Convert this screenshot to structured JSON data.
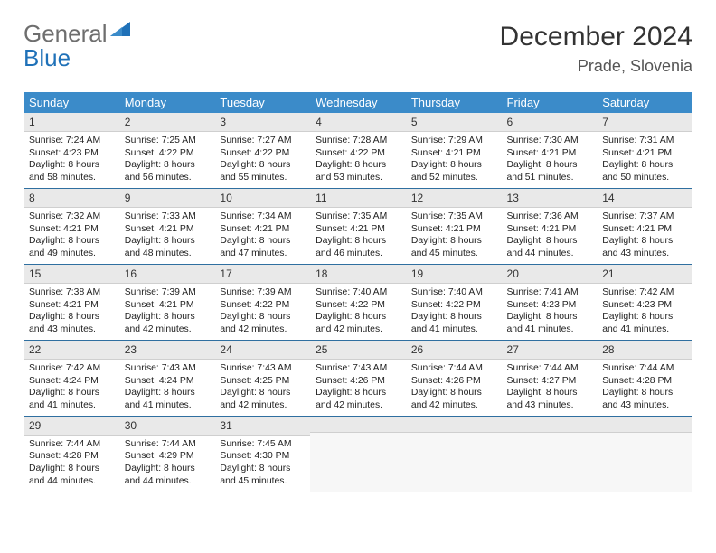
{
  "brand": {
    "part1": "General",
    "part2": "Blue"
  },
  "title": "December 2024",
  "location": "Prade, Slovenia",
  "colors": {
    "header_bg": "#3b8bc9",
    "header_text": "#ffffff",
    "daynum_bg": "#e9e9e9",
    "row_line": "#2f6fa0",
    "logo_gray": "#6e6e6e",
    "logo_blue": "#1f71b8"
  },
  "dow": [
    "Sunday",
    "Monday",
    "Tuesday",
    "Wednesday",
    "Thursday",
    "Friday",
    "Saturday"
  ],
  "weeks": [
    [
      {
        "n": "1",
        "sr": "7:24 AM",
        "ss": "4:23 PM",
        "dl": "8 hours and 58 minutes."
      },
      {
        "n": "2",
        "sr": "7:25 AM",
        "ss": "4:22 PM",
        "dl": "8 hours and 56 minutes."
      },
      {
        "n": "3",
        "sr": "7:27 AM",
        "ss": "4:22 PM",
        "dl": "8 hours and 55 minutes."
      },
      {
        "n": "4",
        "sr": "7:28 AM",
        "ss": "4:22 PM",
        "dl": "8 hours and 53 minutes."
      },
      {
        "n": "5",
        "sr": "7:29 AM",
        "ss": "4:21 PM",
        "dl": "8 hours and 52 minutes."
      },
      {
        "n": "6",
        "sr": "7:30 AM",
        "ss": "4:21 PM",
        "dl": "8 hours and 51 minutes."
      },
      {
        "n": "7",
        "sr": "7:31 AM",
        "ss": "4:21 PM",
        "dl": "8 hours and 50 minutes."
      }
    ],
    [
      {
        "n": "8",
        "sr": "7:32 AM",
        "ss": "4:21 PM",
        "dl": "8 hours and 49 minutes."
      },
      {
        "n": "9",
        "sr": "7:33 AM",
        "ss": "4:21 PM",
        "dl": "8 hours and 48 minutes."
      },
      {
        "n": "10",
        "sr": "7:34 AM",
        "ss": "4:21 PM",
        "dl": "8 hours and 47 minutes."
      },
      {
        "n": "11",
        "sr": "7:35 AM",
        "ss": "4:21 PM",
        "dl": "8 hours and 46 minutes."
      },
      {
        "n": "12",
        "sr": "7:35 AM",
        "ss": "4:21 PM",
        "dl": "8 hours and 45 minutes."
      },
      {
        "n": "13",
        "sr": "7:36 AM",
        "ss": "4:21 PM",
        "dl": "8 hours and 44 minutes."
      },
      {
        "n": "14",
        "sr": "7:37 AM",
        "ss": "4:21 PM",
        "dl": "8 hours and 43 minutes."
      }
    ],
    [
      {
        "n": "15",
        "sr": "7:38 AM",
        "ss": "4:21 PM",
        "dl": "8 hours and 43 minutes."
      },
      {
        "n": "16",
        "sr": "7:39 AM",
        "ss": "4:21 PM",
        "dl": "8 hours and 42 minutes."
      },
      {
        "n": "17",
        "sr": "7:39 AM",
        "ss": "4:22 PM",
        "dl": "8 hours and 42 minutes."
      },
      {
        "n": "18",
        "sr": "7:40 AM",
        "ss": "4:22 PM",
        "dl": "8 hours and 42 minutes."
      },
      {
        "n": "19",
        "sr": "7:40 AM",
        "ss": "4:22 PM",
        "dl": "8 hours and 41 minutes."
      },
      {
        "n": "20",
        "sr": "7:41 AM",
        "ss": "4:23 PM",
        "dl": "8 hours and 41 minutes."
      },
      {
        "n": "21",
        "sr": "7:42 AM",
        "ss": "4:23 PM",
        "dl": "8 hours and 41 minutes."
      }
    ],
    [
      {
        "n": "22",
        "sr": "7:42 AM",
        "ss": "4:24 PM",
        "dl": "8 hours and 41 minutes."
      },
      {
        "n": "23",
        "sr": "7:43 AM",
        "ss": "4:24 PM",
        "dl": "8 hours and 41 minutes."
      },
      {
        "n": "24",
        "sr": "7:43 AM",
        "ss": "4:25 PM",
        "dl": "8 hours and 42 minutes."
      },
      {
        "n": "25",
        "sr": "7:43 AM",
        "ss": "4:26 PM",
        "dl": "8 hours and 42 minutes."
      },
      {
        "n": "26",
        "sr": "7:44 AM",
        "ss": "4:26 PM",
        "dl": "8 hours and 42 minutes."
      },
      {
        "n": "27",
        "sr": "7:44 AM",
        "ss": "4:27 PM",
        "dl": "8 hours and 43 minutes."
      },
      {
        "n": "28",
        "sr": "7:44 AM",
        "ss": "4:28 PM",
        "dl": "8 hours and 43 minutes."
      }
    ],
    [
      {
        "n": "29",
        "sr": "7:44 AM",
        "ss": "4:28 PM",
        "dl": "8 hours and 44 minutes."
      },
      {
        "n": "30",
        "sr": "7:44 AM",
        "ss": "4:29 PM",
        "dl": "8 hours and 44 minutes."
      },
      {
        "n": "31",
        "sr": "7:45 AM",
        "ss": "4:30 PM",
        "dl": "8 hours and 45 minutes."
      },
      null,
      null,
      null,
      null
    ]
  ],
  "labels": {
    "sunrise": "Sunrise:",
    "sunset": "Sunset:",
    "daylight": "Daylight:"
  }
}
